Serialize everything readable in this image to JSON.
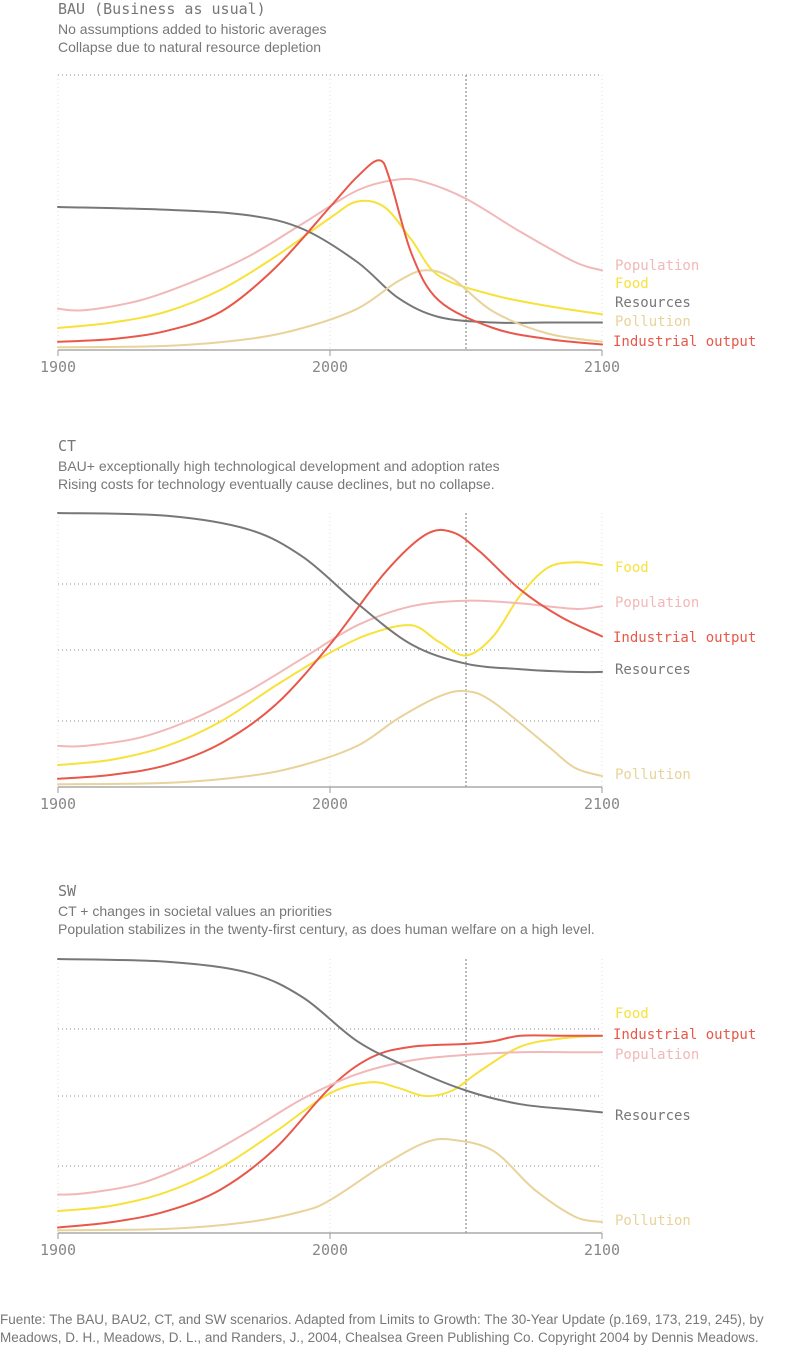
{
  "colors": {
    "Population": "#f2b8b8",
    "Food": "#f7e23a",
    "Resources": "#777777",
    "Pollution": "#e8d39a",
    "Industrial output": "#e8584a"
  },
  "source": "Fuente: The BAU, BAU2, CT, and SW scenarios. Adapted from Limits to Growth: The 30-Year Update (p.169, 173, 219, 245), by Meadows, D. H., Meadows, D. L., and Randers, J., 2004, Chealsea Green Publishing Co. Copyright 2004 by Dennis Meadows.",
  "chart_data": [
    {
      "type": "line",
      "title": "BAU (Business as usual)",
      "subtitle": [
        "No assumptions added to historic averages",
        "Collapse due to natural resource depletion"
      ],
      "xlabel": "",
      "ylabel": "",
      "xlim": [
        1900,
        2100
      ],
      "ylim": [
        0,
        1
      ],
      "x_ticks": [
        1900,
        2000,
        2100
      ],
      "grid": true,
      "reference_line_x": 2050,
      "series": [
        {
          "name": "Population",
          "x": [
            1900,
            1910,
            1930,
            1950,
            1970,
            1990,
            2010,
            2025,
            2035,
            2050,
            2070,
            2090,
            2100
          ],
          "values": [
            0.15,
            0.145,
            0.18,
            0.25,
            0.34,
            0.46,
            0.58,
            0.62,
            0.61,
            0.55,
            0.43,
            0.32,
            0.29
          ]
        },
        {
          "name": "Food",
          "x": [
            1900,
            1920,
            1940,
            1960,
            1980,
            2000,
            2010,
            2020,
            2030,
            2040,
            2060,
            2080,
            2100
          ],
          "values": [
            0.08,
            0.1,
            0.14,
            0.22,
            0.34,
            0.48,
            0.54,
            0.52,
            0.4,
            0.27,
            0.2,
            0.16,
            0.13
          ]
        },
        {
          "name": "Resources",
          "x": [
            1900,
            1940,
            1970,
            1990,
            2010,
            2025,
            2040,
            2060,
            2080,
            2100
          ],
          "values": [
            0.52,
            0.51,
            0.49,
            0.44,
            0.32,
            0.19,
            0.12,
            0.1,
            0.1,
            0.1
          ]
        },
        {
          "name": "Pollution",
          "x": [
            1900,
            1940,
            1970,
            1990,
            2010,
            2025,
            2035,
            2045,
            2060,
            2080,
            2100
          ],
          "values": [
            0.01,
            0.015,
            0.04,
            0.08,
            0.15,
            0.25,
            0.29,
            0.26,
            0.14,
            0.06,
            0.03
          ]
        },
        {
          "name": "Industrial output",
          "x": [
            1900,
            1920,
            1940,
            1960,
            1980,
            2000,
            2010,
            2018,
            2022,
            2030,
            2040,
            2060,
            2080,
            2100
          ],
          "values": [
            0.03,
            0.04,
            0.07,
            0.14,
            0.3,
            0.52,
            0.63,
            0.69,
            0.62,
            0.35,
            0.18,
            0.08,
            0.04,
            0.02
          ]
        }
      ],
      "labels": [
        "Population",
        "Food",
        "Resources",
        "Pollution",
        "Industrial output"
      ]
    },
    {
      "type": "line",
      "title": "CT",
      "subtitle": [
        "BAU+ exceptionally high technological development and adoption rates",
        "Rising costs for technology eventually cause declines, but no collapse."
      ],
      "xlabel": "",
      "ylabel": "",
      "xlim": [
        1900,
        2100
      ],
      "ylim": [
        0,
        1
      ],
      "x_ticks": [
        1900,
        2000,
        2100
      ],
      "grid": true,
      "reference_line_x": 2050,
      "series": [
        {
          "name": "Food",
          "x": [
            1900,
            1920,
            1940,
            1960,
            1980,
            2000,
            2015,
            2030,
            2040,
            2050,
            2060,
            2070,
            2080,
            2090,
            2100
          ],
          "values": [
            0.08,
            0.1,
            0.15,
            0.24,
            0.37,
            0.49,
            0.56,
            0.59,
            0.53,
            0.48,
            0.55,
            0.7,
            0.8,
            0.82,
            0.81
          ]
        },
        {
          "name": "Population",
          "x": [
            1900,
            1910,
            1930,
            1950,
            1970,
            1990,
            2010,
            2030,
            2050,
            2070,
            2090,
            2100
          ],
          "values": [
            0.15,
            0.15,
            0.18,
            0.25,
            0.35,
            0.47,
            0.59,
            0.66,
            0.68,
            0.67,
            0.65,
            0.66
          ]
        },
        {
          "name": "Industrial output",
          "x": [
            1900,
            1920,
            1940,
            1960,
            1980,
            2000,
            2020,
            2035,
            2045,
            2055,
            2070,
            2085,
            2100
          ],
          "values": [
            0.03,
            0.045,
            0.08,
            0.16,
            0.3,
            0.52,
            0.78,
            0.92,
            0.93,
            0.86,
            0.72,
            0.62,
            0.55
          ]
        },
        {
          "name": "Resources",
          "x": [
            1900,
            1940,
            1970,
            1990,
            2010,
            2030,
            2050,
            2070,
            2090,
            2100
          ],
          "values": [
            1.0,
            0.99,
            0.94,
            0.84,
            0.67,
            0.52,
            0.45,
            0.43,
            0.42,
            0.42
          ]
        },
        {
          "name": "Pollution",
          "x": [
            1900,
            1940,
            1970,
            1990,
            2010,
            2025,
            2040,
            2050,
            2060,
            2080,
            2090,
            2100
          ],
          "values": [
            0.01,
            0.015,
            0.04,
            0.08,
            0.15,
            0.25,
            0.33,
            0.35,
            0.31,
            0.15,
            0.07,
            0.04
          ]
        }
      ],
      "labels": [
        "Food",
        "Population",
        "Industrial output",
        "Resources",
        "Pollution"
      ]
    },
    {
      "type": "line",
      "title": "SW",
      "subtitle": [
        "CT + changes in societal values an priorities",
        "Population stabilizes in the twenty-first century, as does human welfare on a high level."
      ],
      "xlabel": "",
      "ylabel": "",
      "xlim": [
        1900,
        2100
      ],
      "ylim": [
        0,
        1
      ],
      "x_ticks": [
        1900,
        2000,
        2100
      ],
      "grid": true,
      "reference_line_x": 2050,
      "series": [
        {
          "name": "Food",
          "x": [
            1900,
            1920,
            1940,
            1960,
            1980,
            2000,
            2015,
            2025,
            2035,
            2045,
            2055,
            2070,
            2085,
            2100
          ],
          "values": [
            0.08,
            0.1,
            0.15,
            0.24,
            0.37,
            0.51,
            0.55,
            0.53,
            0.5,
            0.52,
            0.59,
            0.68,
            0.71,
            0.72
          ]
        },
        {
          "name": "Industrial output",
          "x": [
            1900,
            1920,
            1940,
            1960,
            1980,
            2000,
            2015,
            2030,
            2050,
            2060,
            2070,
            2085,
            2100
          ],
          "values": [
            0.02,
            0.04,
            0.08,
            0.16,
            0.31,
            0.53,
            0.64,
            0.68,
            0.69,
            0.7,
            0.72,
            0.72,
            0.72
          ]
        },
        {
          "name": "Population",
          "x": [
            1900,
            1910,
            1930,
            1950,
            1970,
            1990,
            2010,
            2030,
            2050,
            2070,
            2090,
            2100
          ],
          "values": [
            0.14,
            0.145,
            0.18,
            0.26,
            0.37,
            0.49,
            0.58,
            0.63,
            0.65,
            0.66,
            0.66,
            0.66
          ]
        },
        {
          "name": "Resources",
          "x": [
            1900,
            1940,
            1970,
            1990,
            2010,
            2030,
            2050,
            2070,
            2090,
            2100
          ],
          "values": [
            1.0,
            0.99,
            0.95,
            0.86,
            0.7,
            0.6,
            0.52,
            0.47,
            0.45,
            0.44
          ]
        },
        {
          "name": "Pollution",
          "x": [
            1900,
            1940,
            1970,
            1990,
            2000,
            2020,
            2035,
            2045,
            2060,
            2075,
            2090,
            2100
          ],
          "values": [
            0.01,
            0.015,
            0.04,
            0.08,
            0.12,
            0.25,
            0.33,
            0.34,
            0.3,
            0.16,
            0.06,
            0.04
          ]
        }
      ],
      "labels": [
        "Food",
        "Industrial output",
        "Population",
        "Resources",
        "Pollution"
      ]
    }
  ]
}
